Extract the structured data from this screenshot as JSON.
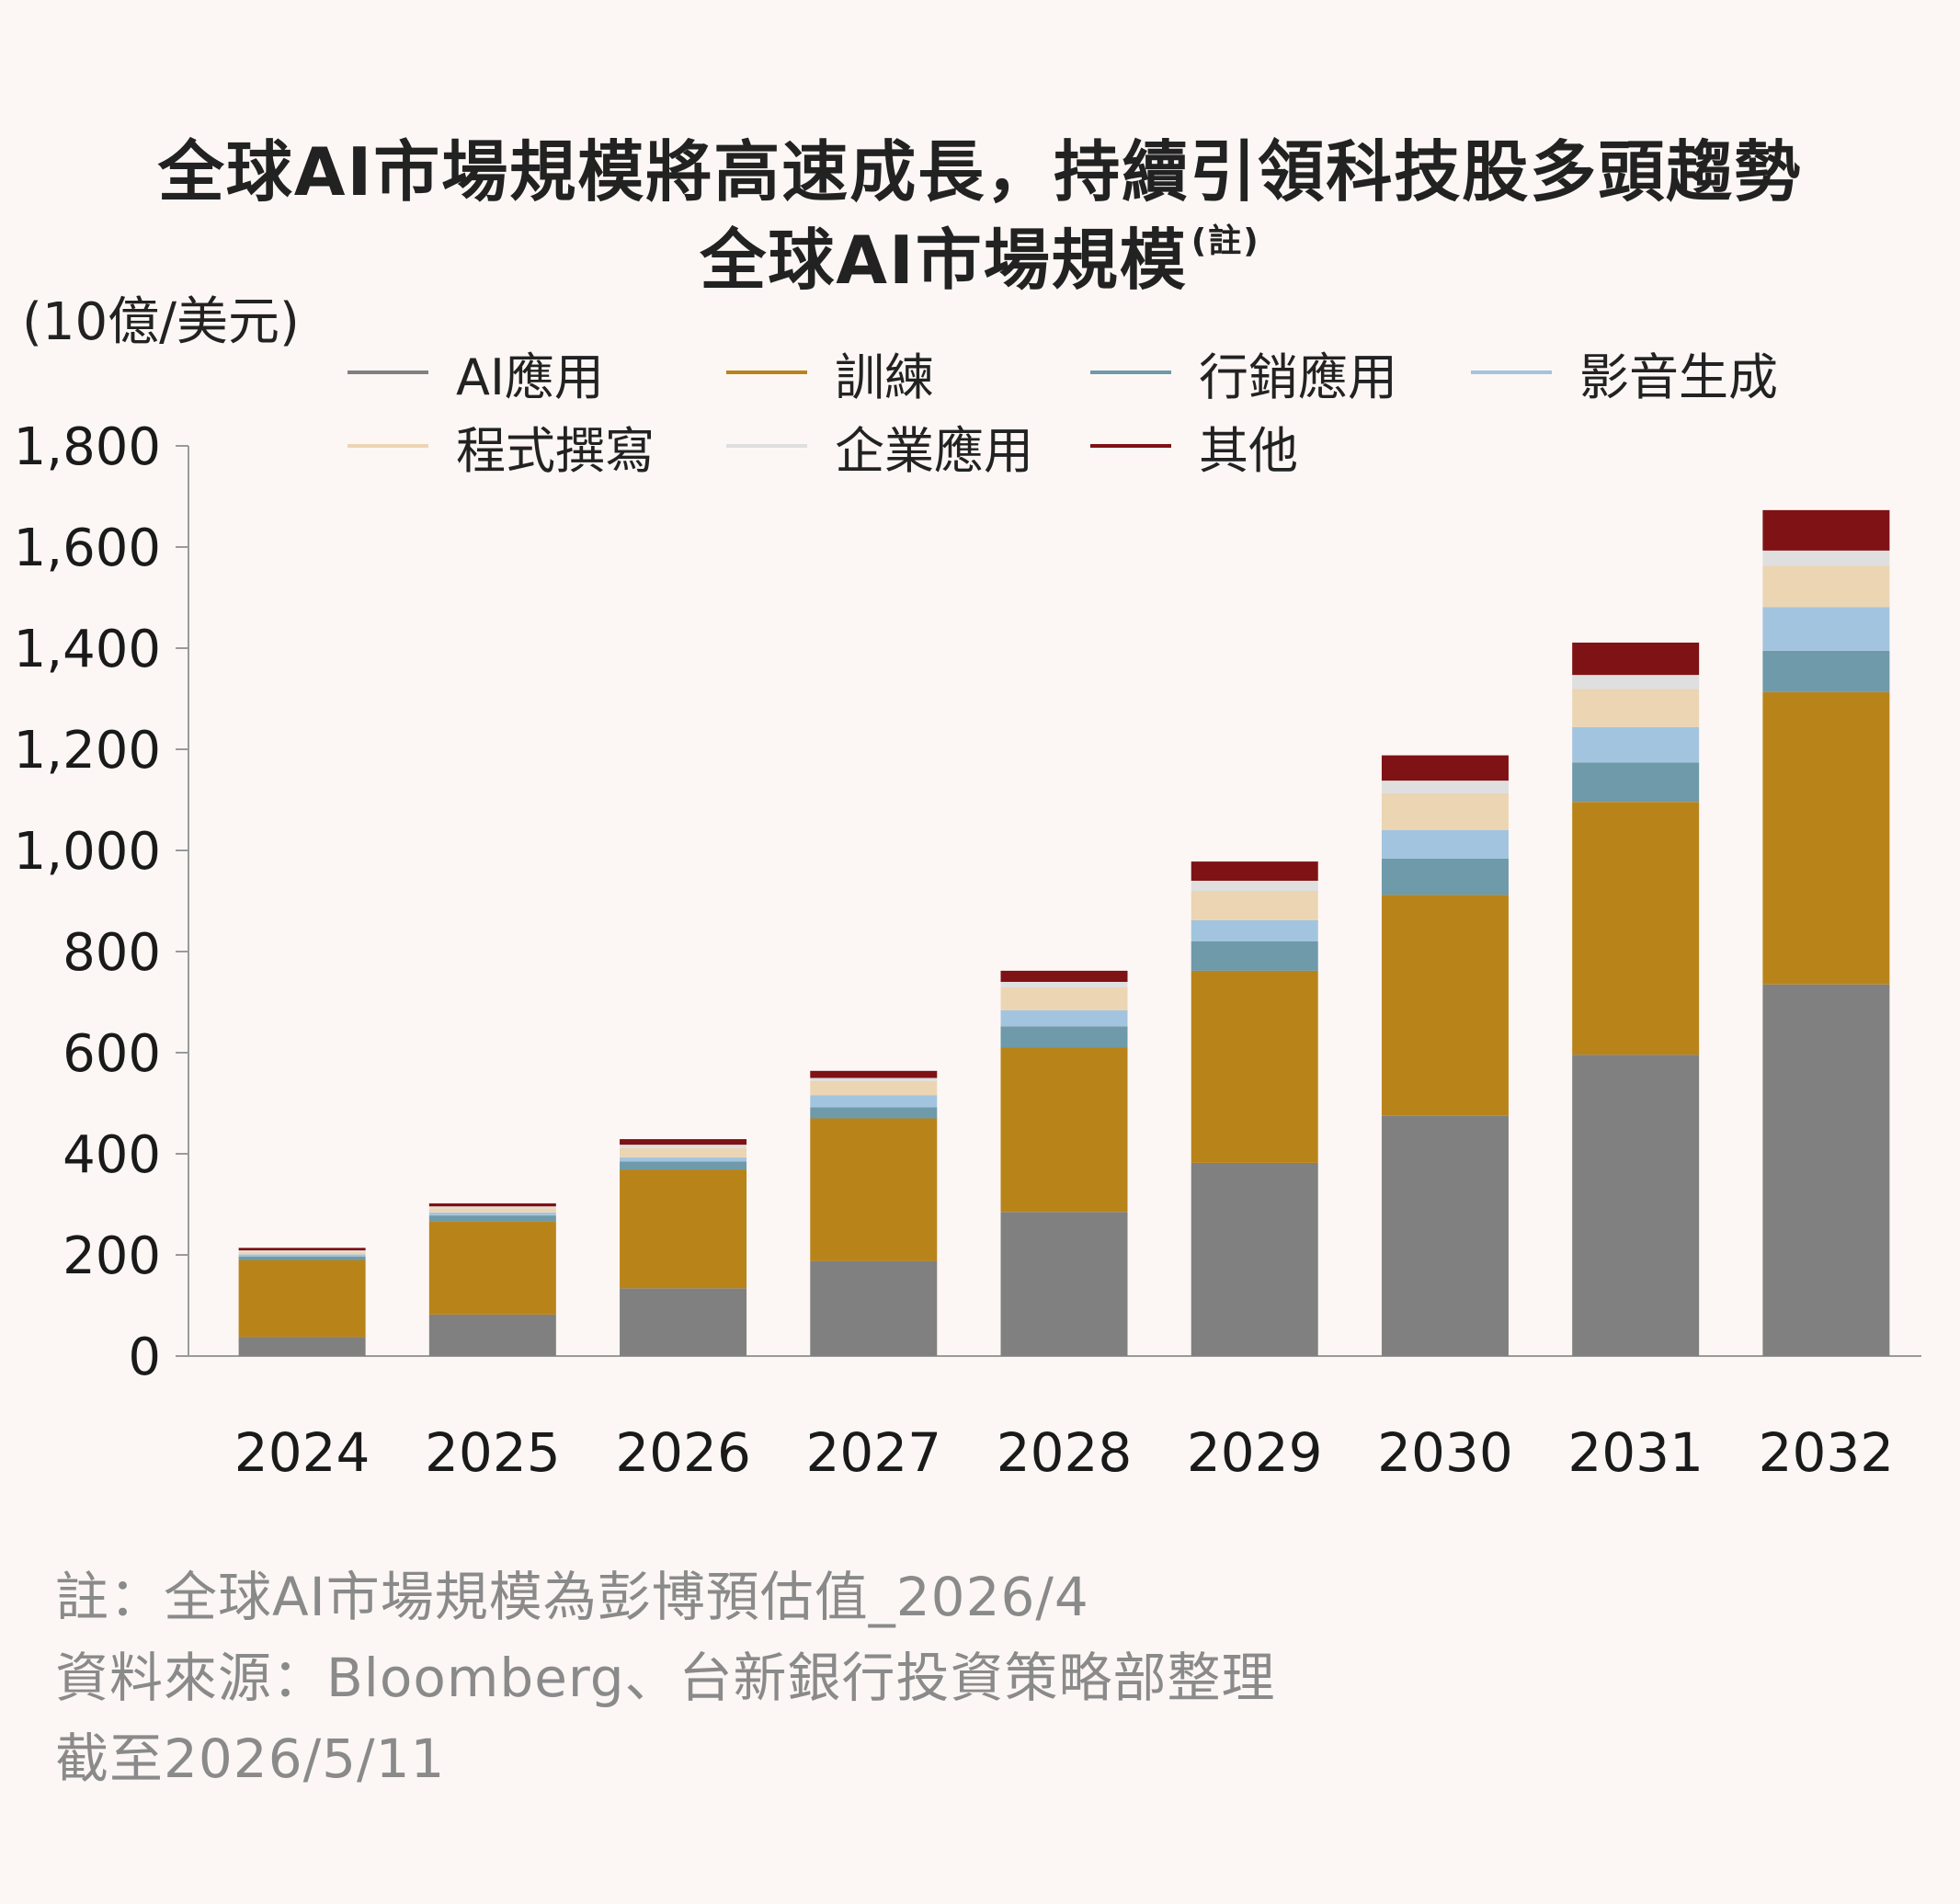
{
  "title": "全球AI市場規模將高速成長，持續引領科技股多頭趨勢",
  "subtitle": "全球AI市場規模",
  "subtitle_note": "(註)",
  "unit_label": "(10億/美元)",
  "legend": [
    {
      "label": "AI應用",
      "color": "#808080"
    },
    {
      "label": "訓練",
      "color": "#b8841a"
    },
    {
      "label": "行銷應用",
      "color": "#6e9aaa"
    },
    {
      "label": "影音生成",
      "color": "#a3c4de"
    },
    {
      "label": "程式撰寫",
      "color": "#ebd5b3"
    },
    {
      "label": "企業應用",
      "color": "#dfdfdf"
    },
    {
      "label": "其他",
      "color": "#7f1215"
    }
  ],
  "footer": {
    "note": "註：全球AI市場規模為彭博預估值_2026/4",
    "source": "資料來源：Bloomberg、台新銀行投資策略部整理",
    "as_of": "截至2026/5/11"
  },
  "chart_data": {
    "type": "bar",
    "stacked": true,
    "title": "全球AI市場規模",
    "ylabel": "(10億/美元)",
    "ylim": [
      0,
      1800
    ],
    "yticks": [
      "0",
      "200",
      "400",
      "600",
      "800",
      "1,000",
      "1,200",
      "1,400",
      "1,600",
      "1,800"
    ],
    "categories": [
      "2024",
      "2025",
      "2026",
      "2027",
      "2028",
      "2029",
      "2030",
      "2031",
      "2032"
    ],
    "series": [
      {
        "name": "AI應用",
        "color": "#808080",
        "values": [
          38,
          82,
          134,
          188,
          285,
          382,
          475,
          596,
          735
        ]
      },
      {
        "name": "訓練",
        "color": "#b8841a",
        "values": [
          152,
          185,
          235,
          282,
          325,
          380,
          437,
          500,
          578
        ]
      },
      {
        "name": "行銷應用",
        "color": "#6e9aaa",
        "values": [
          7,
          11,
          16,
          22,
          42,
          58,
          72,
          78,
          82
        ]
      },
      {
        "name": "影音生成",
        "color": "#a3c4de",
        "values": [
          4,
          6,
          8,
          24,
          32,
          42,
          56,
          70,
          86
        ]
      },
      {
        "name": "程式撰寫",
        "color": "#ebd5b3",
        "values": [
          5,
          8,
          18,
          28,
          45,
          58,
          73,
          75,
          82
        ]
      },
      {
        "name": "企業應用",
        "color": "#dfdfdf",
        "values": [
          3,
          4,
          7,
          6,
          11,
          20,
          25,
          28,
          30
        ]
      },
      {
        "name": "其他",
        "color": "#7f1215",
        "values": [
          5,
          6,
          11,
          14,
          22,
          38,
          50,
          64,
          80
        ]
      }
    ]
  }
}
